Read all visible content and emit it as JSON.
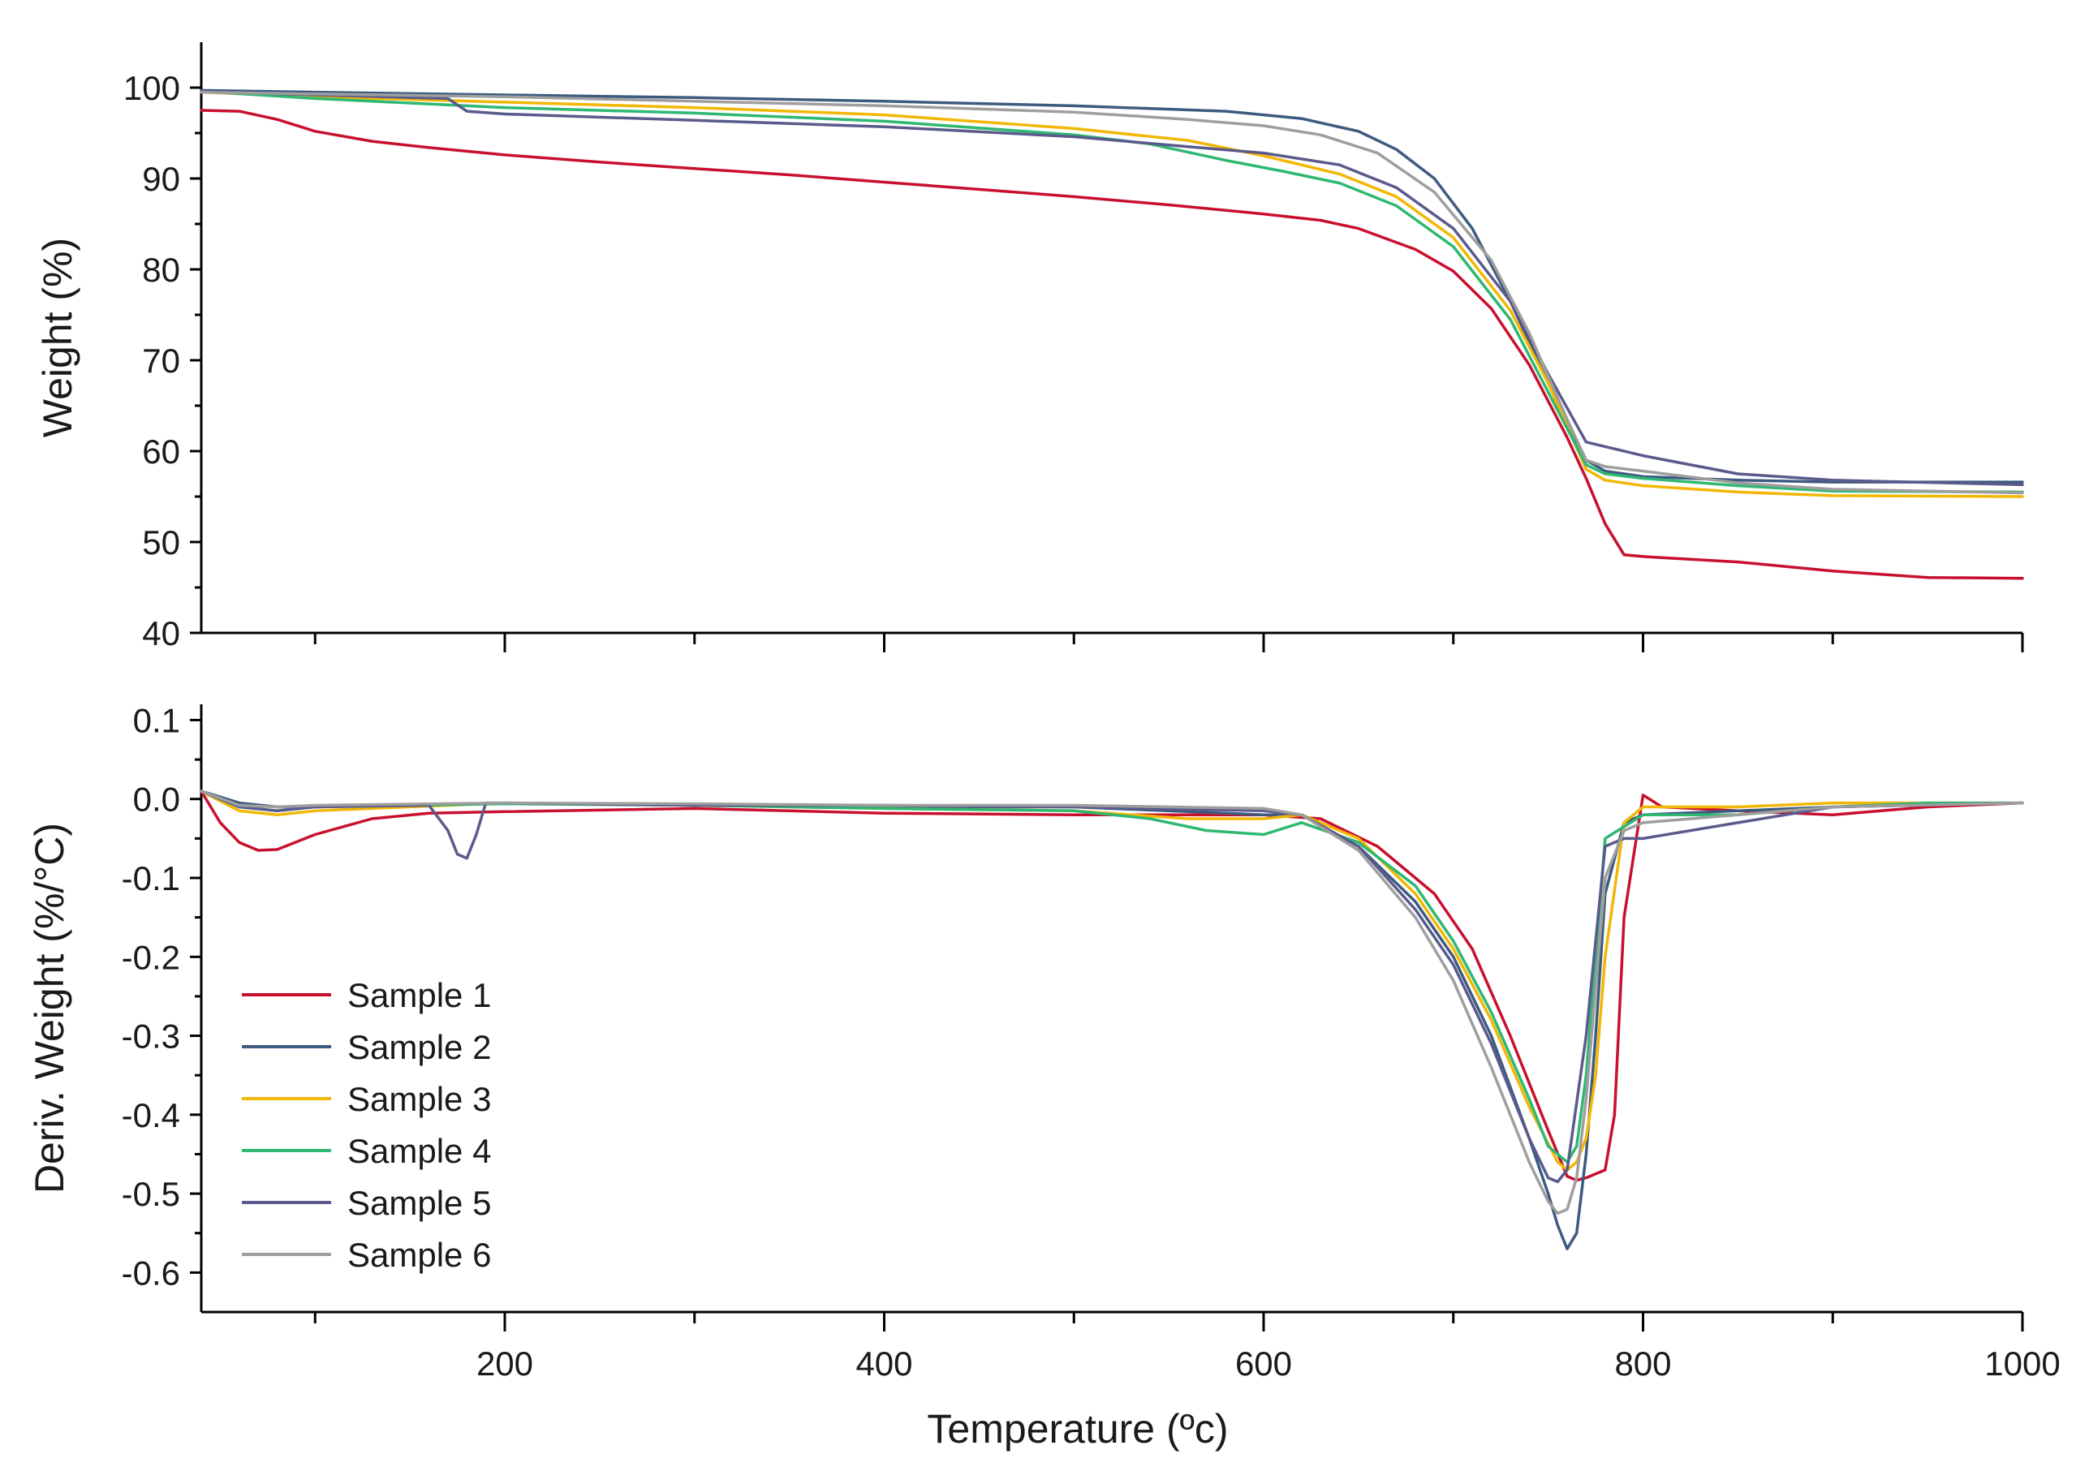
{
  "chart_data": {
    "type": "line",
    "xlabel": "Temperature (ºc)",
    "xlim": [
      40,
      1000
    ],
    "xticks": [
      200,
      400,
      600,
      800,
      1000
    ],
    "legend_position": "bottom-left of lower panel",
    "colors": {
      "Sample 1": "#c8102e",
      "Sample 2": "#3d5a80",
      "Sample 3": "#f2b705",
      "Sample 4": "#2eb872",
      "Sample 5": "#5a5a8c",
      "Sample 6": "#9e9e9e"
    },
    "legend": [
      "Sample 1",
      "Sample 2",
      "Sample 3",
      "Sample 4",
      "Sample 5",
      "Sample 6"
    ],
    "panels": [
      {
        "id": "weight",
        "ylabel": "Weight (%)",
        "ylim": [
          40,
          105
        ],
        "yticks": [
          40,
          50,
          60,
          70,
          80,
          90,
          100
        ],
        "ytick_labels": [
          "40",
          "50",
          "60",
          "70",
          "80",
          "90",
          "100"
        ],
        "series": [
          {
            "name": "Sample 1",
            "x": [
              40,
              60,
              80,
              100,
              130,
              160,
              200,
              250,
              300,
              350,
              400,
              450,
              500,
              550,
              600,
              630,
              650,
              680,
              700,
              720,
              740,
              760,
              770,
              780,
              790,
              800,
              850,
              900,
              950,
              1000
            ],
            "values": [
              97.5,
              97.4,
              96.5,
              95.2,
              94.1,
              93.4,
              92.6,
              91.8,
              91.1,
              90.4,
              89.6,
              88.8,
              88.0,
              87.1,
              86.1,
              85.4,
              84.5,
              82.2,
              79.8,
              75.7,
              69.5,
              61.5,
              57.0,
              52.0,
              48.6,
              48.4,
              47.8,
              46.8,
              46.1,
              46.0
            ]
          },
          {
            "name": "Sample 2",
            "x": [
              40,
              100,
              200,
              300,
              400,
              500,
              580,
              620,
              650,
              670,
              690,
              710,
              730,
              750,
              770,
              780,
              800,
              850,
              900,
              1000
            ],
            "values": [
              99.7,
              99.5,
              99.2,
              98.9,
              98.5,
              98.0,
              97.4,
              96.6,
              95.2,
              93.2,
              90.0,
              84.5,
              76.5,
              67.5,
              59.0,
              57.8,
              57.2,
              56.8,
              56.6,
              56.6
            ]
          },
          {
            "name": "Sample 3",
            "x": [
              40,
              100,
              200,
              300,
              400,
              500,
              560,
              600,
              640,
              670,
              700,
              730,
              750,
              770,
              780,
              800,
              850,
              900,
              1000
            ],
            "values": [
              99.5,
              99.0,
              98.4,
              97.8,
              97.0,
              95.5,
              94.2,
              92.5,
              90.5,
              88.0,
              83.5,
              75.5,
              67.5,
              58.0,
              56.8,
              56.2,
              55.5,
              55.1,
              55.0
            ]
          },
          {
            "name": "Sample 4",
            "x": [
              40,
              100,
              150,
              200,
              300,
              400,
              500,
              540,
              580,
              610,
              640,
              670,
              700,
              730,
              750,
              770,
              780,
              800,
              850,
              900,
              1000
            ],
            "values": [
              99.6,
              98.8,
              98.3,
              97.8,
              97.2,
              96.3,
              94.8,
              93.8,
              92.0,
              90.8,
              89.5,
              87.0,
              82.5,
              74.5,
              66.5,
              58.5,
              57.5,
              57.0,
              56.2,
              55.6,
              55.5
            ]
          },
          {
            "name": "Sample 5",
            "x": [
              40,
              100,
              170,
              180,
              200,
              300,
              400,
              500,
              560,
              600,
              640,
              670,
              700,
              730,
              750,
              770,
              780,
              800,
              850,
              900,
              1000
            ],
            "values": [
              99.6,
              99.2,
              98.8,
              97.4,
              97.1,
              96.4,
              95.7,
              94.6,
              93.5,
              92.8,
              91.5,
              89.0,
              84.5,
              76.5,
              68.5,
              61.0,
              60.5,
              59.5,
              57.5,
              56.8,
              56.3
            ]
          },
          {
            "name": "Sample 6",
            "x": [
              40,
              100,
              200,
              300,
              400,
              500,
              560,
              600,
              630,
              660,
              690,
              720,
              740,
              760,
              770,
              780,
              800,
              850,
              900,
              1000
            ],
            "values": [
              99.5,
              99.3,
              99.0,
              98.5,
              98.0,
              97.3,
              96.5,
              95.8,
              94.8,
              92.8,
              88.5,
              81.0,
              73.0,
              63.5,
              59.0,
              58.3,
              57.8,
              56.5,
              55.8,
              55.4
            ]
          }
        ]
      },
      {
        "id": "deriv",
        "ylabel": "Deriv. Weight (%/°C)",
        "ylim": [
          -0.65,
          0.12
        ],
        "yticks": [
          -0.6,
          -0.5,
          -0.4,
          -0.3,
          -0.2,
          -0.1,
          0.0,
          0.1
        ],
        "ytick_labels": [
          "-0.6",
          "-0.5",
          "-0.4",
          "-0.3",
          "-0.2",
          "-0.1",
          "0.0",
          "0.1"
        ],
        "series": [
          {
            "name": "Sample 1",
            "x": [
              40,
              50,
              60,
              70,
              80,
              100,
              130,
              160,
              200,
              300,
              400,
              500,
              550,
              600,
              630,
              660,
              690,
              710,
              730,
              750,
              760,
              765,
              770,
              780,
              785,
              790,
              800,
              810,
              850,
              900,
              950,
              1000
            ],
            "values": [
              0.01,
              -0.03,
              -0.055,
              -0.065,
              -0.064,
              -0.045,
              -0.025,
              -0.018,
              -0.016,
              -0.012,
              -0.018,
              -0.02,
              -0.02,
              -0.02,
              -0.025,
              -0.06,
              -0.12,
              -0.19,
              -0.3,
              -0.42,
              -0.478,
              -0.483,
              -0.48,
              -0.47,
              -0.4,
              -0.15,
              0.005,
              -0.01,
              -0.015,
              -0.02,
              -0.01,
              -0.005
            ]
          },
          {
            "name": "Sample 2",
            "x": [
              40,
              60,
              80,
              100,
              200,
              300,
              400,
              500,
              600,
              620,
              650,
              680,
              700,
              720,
              740,
              750,
              755,
              760,
              765,
              770,
              775,
              780,
              790,
              800,
              850,
              900,
              1000
            ],
            "values": [
              0.01,
              -0.005,
              -0.01,
              -0.01,
              -0.005,
              -0.008,
              -0.01,
              -0.01,
              -0.02,
              -0.02,
              -0.06,
              -0.13,
              -0.2,
              -0.3,
              -0.43,
              -0.5,
              -0.54,
              -0.57,
              -0.55,
              -0.45,
              -0.3,
              -0.12,
              -0.03,
              -0.02,
              -0.015,
              -0.01,
              -0.005
            ]
          },
          {
            "name": "Sample 3",
            "x": [
              40,
              60,
              80,
              100,
              200,
              300,
              400,
              500,
              560,
              600,
              620,
              650,
              680,
              700,
              720,
              740,
              755,
              760,
              765,
              770,
              775,
              780,
              790,
              800,
              850,
              900,
              1000
            ],
            "values": [
              0.01,
              -0.015,
              -0.02,
              -0.015,
              -0.005,
              -0.008,
              -0.012,
              -0.015,
              -0.025,
              -0.025,
              -0.02,
              -0.05,
              -0.12,
              -0.19,
              -0.28,
              -0.39,
              -0.46,
              -0.47,
              -0.46,
              -0.43,
              -0.35,
              -0.2,
              -0.03,
              -0.01,
              -0.01,
              -0.005,
              -0.005
            ]
          },
          {
            "name": "Sample 4",
            "x": [
              40,
              60,
              80,
              100,
              200,
              300,
              400,
              500,
              540,
              570,
              600,
              620,
              650,
              680,
              700,
              720,
              740,
              750,
              760,
              765,
              770,
              775,
              780,
              800,
              850,
              900,
              950,
              1000
            ],
            "values": [
              0.01,
              -0.01,
              -0.015,
              -0.01,
              -0.006,
              -0.008,
              -0.012,
              -0.015,
              -0.025,
              -0.04,
              -0.045,
              -0.03,
              -0.055,
              -0.11,
              -0.18,
              -0.27,
              -0.38,
              -0.44,
              -0.46,
              -0.44,
              -0.35,
              -0.2,
              -0.05,
              -0.02,
              -0.02,
              -0.01,
              -0.005,
              -0.005
            ]
          },
          {
            "name": "Sample 5",
            "x": [
              40,
              60,
              80,
              100,
              160,
              170,
              175,
              180,
              185,
              190,
              200,
              300,
              400,
              500,
              600,
              620,
              650,
              680,
              700,
              720,
              740,
              750,
              755,
              760,
              770,
              780,
              790,
              800,
              850,
              900,
              1000
            ],
            "values": [
              0.01,
              -0.01,
              -0.015,
              -0.01,
              -0.008,
              -0.04,
              -0.07,
              -0.075,
              -0.045,
              -0.005,
              -0.005,
              -0.008,
              -0.008,
              -0.01,
              -0.015,
              -0.02,
              -0.06,
              -0.14,
              -0.21,
              -0.31,
              -0.43,
              -0.48,
              -0.485,
              -0.47,
              -0.3,
              -0.06,
              -0.05,
              -0.05,
              -0.03,
              -0.01,
              -0.005
            ]
          },
          {
            "name": "Sample 6",
            "x": [
              40,
              60,
              80,
              100,
              200,
              300,
              400,
              500,
              600,
              620,
              650,
              680,
              700,
              720,
              740,
              750,
              755,
              760,
              765,
              770,
              780,
              790,
              800,
              850,
              900,
              1000
            ],
            "values": [
              0.01,
              -0.008,
              -0.01,
              -0.008,
              -0.005,
              -0.006,
              -0.008,
              -0.008,
              -0.012,
              -0.02,
              -0.065,
              -0.15,
              -0.23,
              -0.34,
              -0.46,
              -0.51,
              -0.525,
              -0.52,
              -0.48,
              -0.38,
              -0.1,
              -0.04,
              -0.03,
              -0.02,
              -0.01,
              -0.005
            ]
          }
        ]
      }
    ]
  }
}
